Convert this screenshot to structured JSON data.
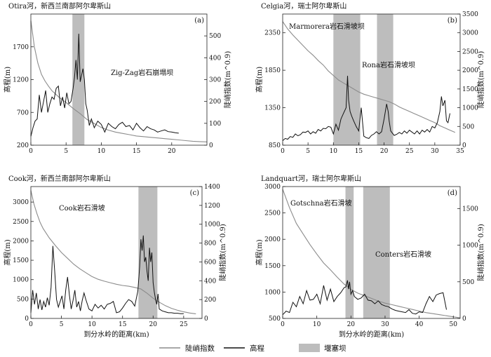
{
  "chart_data": [
    {
      "type": "line",
      "title": "Otira河，新西兰南部阿尔卑斯山",
      "panel_label": "(a)",
      "xlabel": "",
      "ylabel": "高程(m)",
      "y2label": "陡峭指数(m^0.9)",
      "xlim": [
        0,
        25
      ],
      "ylim": [
        200,
        2200
      ],
      "y2lim": [
        0,
        600
      ],
      "xticks": [
        0,
        5,
        10,
        15,
        20
      ],
      "yticks": [
        200,
        700,
        1200,
        1700
      ],
      "y2ticks": [
        0,
        100,
        200,
        300,
        400,
        500
      ],
      "dams": [
        {
          "label": "Zig-Zag岩石崩塌坝",
          "x_range": [
            5.9,
            7.6
          ]
        }
      ],
      "series": [
        {
          "name": "高程",
          "axis": "left",
          "x": [
            0,
            0.5,
            1,
            1.5,
            2,
            2.5,
            3,
            4,
            5,
            6,
            7,
            8,
            9,
            10,
            11,
            12,
            13,
            14,
            15,
            16,
            17,
            18,
            19,
            20,
            21,
            22,
            23,
            24,
            25
          ],
          "y": [
            2100,
            1700,
            1450,
            1280,
            1180,
            1100,
            1030,
            930,
            850,
            760,
            680,
            590,
            530,
            470,
            430,
            400,
            380,
            360,
            340,
            330,
            320,
            310,
            300,
            290,
            280,
            270,
            260,
            255,
            250
          ]
        },
        {
          "name": "陡峭指数",
          "axis": "right",
          "x": [
            0,
            0.3,
            0.6,
            0.9,
            1.2,
            1.5,
            1.8,
            2.1,
            2.4,
            2.7,
            3,
            3.3,
            3.6,
            3.9,
            4.2,
            4.5,
            4.8,
            5.1,
            5.4,
            5.7,
            6,
            6.2,
            6.4,
            6.6,
            6.8,
            7,
            7.2,
            7.4,
            7.6,
            7.8,
            8,
            8.3,
            8.6,
            9,
            9.5,
            10,
            10.5,
            11,
            11.5,
            12,
            12.5,
            13,
            13.5,
            14,
            14.5,
            15,
            15.5,
            16,
            16.5,
            17,
            17.5,
            18,
            18.5,
            19,
            19.5,
            20,
            20.5,
            21
          ],
          "y": [
            40,
            80,
            110,
            120,
            230,
            150,
            200,
            250,
            150,
            190,
            220,
            210,
            260,
            270,
            180,
            220,
            170,
            240,
            190,
            200,
            260,
            310,
            390,
            300,
            510,
            290,
            320,
            350,
            300,
            190,
            160,
            90,
            120,
            80,
            110,
            95,
            60,
            100,
            85,
            75,
            95,
            105,
            85,
            90,
            70,
            100,
            80,
            65,
            85,
            75,
            70,
            60,
            65,
            70,
            62,
            60,
            57,
            55
          ]
        }
      ]
    },
    {
      "type": "line",
      "title": "Celgia河，瑞士阿尔卑斯山",
      "panel_label": "(b)",
      "xlabel": "",
      "ylabel": "高程(m)",
      "y2label": "陡峭指数(m^0.9)",
      "xlim": [
        0,
        35
      ],
      "ylim": [
        850,
        2600
      ],
      "y2lim": [
        0,
        3500
      ],
      "xticks": [
        0,
        5,
        10,
        15,
        20,
        25,
        30,
        35
      ],
      "yticks": [
        850,
        1350,
        1850,
        2350
      ],
      "y2ticks": [
        0,
        500,
        1000,
        1500,
        2000,
        2500,
        3000,
        3500
      ],
      "dams": [
        {
          "label": "Marmorera岩石滑坡坝",
          "x_range": [
            10,
            15.3
          ]
        },
        {
          "label": "Rona岩石滑坡坝",
          "x_range": [
            18.6,
            21.8
          ]
        }
      ],
      "series": [
        {
          "name": "高程",
          "axis": "left",
          "x": [
            0,
            1,
            2,
            3,
            4,
            5,
            6,
            7,
            8,
            9,
            10,
            11,
            12,
            13,
            14,
            15,
            16,
            17,
            18,
            19,
            20,
            21,
            22,
            23,
            24,
            25,
            26,
            27,
            28,
            29,
            30,
            31,
            32,
            33,
            34
          ],
          "y": [
            2500,
            2400,
            2320,
            2250,
            2180,
            2110,
            2050,
            1980,
            1920,
            1840,
            1780,
            1720,
            1680,
            1640,
            1600,
            1560,
            1530,
            1510,
            1490,
            1470,
            1450,
            1430,
            1400,
            1360,
            1330,
            1300,
            1270,
            1240,
            1210,
            1180,
            1150,
            1110,
            1080,
            1050,
            1020
          ]
        },
        {
          "name": "陡峭指数",
          "axis": "right",
          "x": [
            0,
            0.5,
            1,
            1.5,
            2,
            2.5,
            3,
            3.5,
            4,
            4.5,
            5,
            5.5,
            6,
            6.5,
            7,
            7.5,
            8,
            8.5,
            9,
            9.5,
            10,
            10.5,
            11,
            11.5,
            12,
            12.5,
            12.8,
            13,
            13.3,
            13.6,
            14,
            14.5,
            15,
            15.5,
            16,
            16.5,
            17,
            17.5,
            18,
            18.5,
            19,
            19.5,
            20,
            20.5,
            20.8,
            21,
            21.3,
            21.6,
            22,
            22.5,
            23,
            23.5,
            24,
            24.5,
            25,
            25.5,
            26,
            26.5,
            27,
            27.5,
            28,
            28.5,
            29,
            29.5,
            30,
            30.5,
            31,
            31.3,
            31.6,
            32,
            32.3,
            32.6,
            33
          ],
          "y": [
            120,
            180,
            160,
            230,
            210,
            300,
            250,
            280,
            350,
            340,
            380,
            300,
            360,
            320,
            420,
            380,
            450,
            440,
            500,
            480,
            300,
            560,
            400,
            700,
            850,
            1000,
            1850,
            1200,
            900,
            780,
            650,
            500,
            380,
            1000,
            240,
            200,
            180,
            260,
            300,
            360,
            300,
            360,
            700,
            1100,
            900,
            650,
            380,
            330,
            260,
            290,
            340,
            300,
            380,
            320,
            400,
            350,
            300,
            380,
            300,
            400,
            350,
            420,
            350,
            500,
            460,
            600,
            900,
            1300,
            1050,
            1200,
            650,
            600,
            850
          ]
        }
      ]
    },
    {
      "type": "line",
      "title": "Cook河，新西兰南部阿尔卑斯山",
      "panel_label": "(c)",
      "xlabel": "到分水岭的距离(km)",
      "ylabel": "高程(m)",
      "y2label": "陡峭指数(m^0.9)",
      "xlim": [
        0,
        28
      ],
      "ylim": [
        0,
        3400
      ],
      "y2lim": [
        0,
        1400
      ],
      "xticks": [
        0,
        5,
        10,
        15,
        20,
        25
      ],
      "yticks": [
        0,
        500,
        1000,
        1500,
        2000,
        2500,
        3000
      ],
      "y2ticks": [
        0,
        200,
        400,
        600,
        800,
        1000,
        1200,
        1400
      ],
      "dams": [
        {
          "label": "Cook岩石滑坡",
          "x_range": [
            17.6,
            20.7
          ]
        }
      ],
      "series": [
        {
          "name": "高程",
          "axis": "left",
          "x": [
            0,
            0.5,
            1,
            1.5,
            2,
            2.5,
            3,
            4,
            5,
            6,
            7,
            8,
            9,
            10,
            11,
            12,
            13,
            14,
            15,
            16,
            17,
            18,
            19,
            20,
            21,
            22,
            23,
            24,
            25,
            26,
            27
          ],
          "y": [
            3300,
            2950,
            2700,
            2480,
            2320,
            2200,
            2080,
            1880,
            1700,
            1550,
            1400,
            1280,
            1180,
            1080,
            1010,
            960,
            920,
            880,
            850,
            830,
            800,
            760,
            650,
            520,
            420,
            330,
            260,
            210,
            170,
            140,
            120
          ]
        },
        {
          "name": "陡峭指数",
          "axis": "right",
          "x": [
            0,
            0.3,
            0.6,
            0.9,
            1.2,
            1.5,
            1.8,
            2.1,
            2.4,
            2.7,
            3,
            3.3,
            3.6,
            3.9,
            4.2,
            4.5,
            4.8,
            5.1,
            5.4,
            5.7,
            6,
            6.3,
            6.6,
            6.9,
            7.2,
            7.5,
            7.8,
            8.1,
            8.4,
            8.7,
            9,
            9.5,
            10,
            10.5,
            11,
            11.5,
            12,
            12.5,
            13,
            13.5,
            14,
            14.5,
            15,
            15.5,
            16,
            16.5,
            17,
            17.5,
            17.8,
            18,
            18.2,
            18.4,
            18.6,
            18.8,
            19,
            19.2,
            19.4,
            19.6,
            19.8,
            20,
            20.2,
            20.4,
            20.6,
            20.8,
            21,
            21.5,
            22,
            22.5,
            23,
            23.5,
            24,
            24.5,
            25
          ],
          "y": [
            60,
            300,
            150,
            270,
            100,
            200,
            90,
            180,
            120,
            220,
            140,
            330,
            770,
            500,
            200,
            120,
            180,
            240,
            100,
            300,
            440,
            250,
            100,
            190,
            300,
            120,
            180,
            80,
            190,
            270,
            200,
            100,
            80,
            150,
            110,
            140,
            100,
            150,
            160,
            180,
            60,
            70,
            110,
            160,
            200,
            180,
            130,
            290,
            550,
            840,
            720,
            880,
            600,
            650,
            500,
            400,
            750,
            600,
            700,
            380,
            280,
            200,
            150,
            260,
            100,
            80,
            70,
            60,
            60,
            55,
            55,
            50,
            50
          ]
        }
      ]
    },
    {
      "type": "line",
      "title": "Landquart河，瑞士阿尔卑斯山",
      "panel_label": "(d)",
      "xlabel": "到分水岭的距离(km)",
      "ylabel": "高程(m)",
      "y2label": "陡峭指数(m^0.9)",
      "xlim": [
        0,
        52
      ],
      "ylim": [
        500,
        3000
      ],
      "y2lim": [
        0,
        1800
      ],
      "xticks": [
        0,
        10,
        20,
        30,
        40,
        50
      ],
      "yticks": [
        500,
        1000,
        1500,
        2000,
        2500,
        3000
      ],
      "y2ticks": [
        0,
        500,
        1000,
        1500
      ],
      "dams": [
        {
          "label": "Gotschna岩石滑坡",
          "x_range": [
            18.4,
            20.8
          ]
        },
        {
          "label": "Conters岩石滑坡",
          "x_range": [
            23.6,
            31.4
          ]
        }
      ],
      "series": [
        {
          "name": "高程",
          "axis": "left",
          "x": [
            0,
            2,
            4,
            6,
            8,
            10,
            12,
            14,
            16,
            18,
            20,
            22,
            24,
            26,
            28,
            30,
            32,
            34,
            36,
            38,
            40,
            42,
            44,
            46,
            48,
            50,
            52
          ],
          "y": [
            2950,
            2600,
            2300,
            2100,
            1900,
            1720,
            1550,
            1420,
            1280,
            1150,
            1050,
            980,
            930,
            880,
            830,
            790,
            760,
            730,
            700,
            670,
            640,
            610,
            590,
            570,
            550,
            530,
            510
          ]
        },
        {
          "name": "陡峭指数",
          "axis": "right",
          "x": [
            0,
            1,
            2,
            3,
            4,
            5,
            6,
            7,
            8,
            9,
            10,
            11,
            12,
            13,
            14,
            15,
            16,
            17,
            18,
            18.5,
            19,
            19.3,
            19.6,
            20,
            20.5,
            21,
            22,
            23,
            24,
            25,
            26,
            27,
            28,
            29,
            30,
            31,
            32,
            33,
            34,
            35,
            36,
            37,
            38,
            39,
            40,
            41,
            42,
            43,
            44,
            45,
            46,
            47,
            48
          ],
          "y": [
            50,
            100,
            80,
            220,
            160,
            300,
            200,
            380,
            250,
            260,
            330,
            200,
            450,
            250,
            400,
            230,
            300,
            350,
            420,
            430,
            520,
            400,
            500,
            330,
            380,
            300,
            260,
            280,
            330,
            250,
            240,
            200,
            240,
            190,
            170,
            160,
            130,
            110,
            100,
            90,
            80,
            120,
            70,
            60,
            90,
            80,
            200,
            300,
            230,
            320,
            340,
            350,
            120
          ]
        }
      ]
    }
  ],
  "legend": [
    {
      "name": "陡峭指数",
      "kind": "line",
      "color": "#8c8c8c"
    },
    {
      "name": "高程",
      "kind": "line",
      "color": "#111111"
    },
    {
      "name": "堰塞坝",
      "kind": "patch",
      "color": "#bdbdbd"
    }
  ],
  "colors": {
    "steepness": "#8c8c8c",
    "elevation": "#111111",
    "dam": "#bdbdbd"
  }
}
